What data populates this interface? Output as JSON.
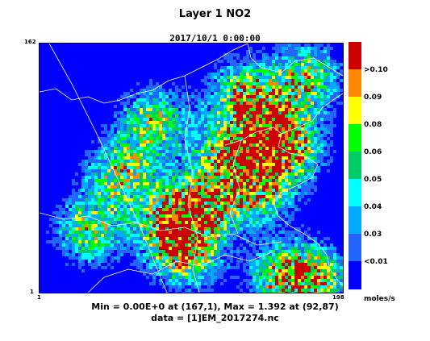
{
  "title": "Layer 1 NO2",
  "datetime": "2017/10/1 0:00:00",
  "axes": {
    "x_min_label": "1",
    "x_max_label": "198",
    "y_min_label": "1",
    "y_max_label": "162"
  },
  "legend": {
    "colors": [
      "#0000ff",
      "#2266ff",
      "#00aaff",
      "#00ffff",
      "#00cc66",
      "#00ff00",
      "#ffff00",
      "#ff8800",
      "#cc0000"
    ],
    "labels": [
      "<0.01",
      "0.03",
      "0.04",
      "0.05",
      "0.06",
      "0.08",
      "0.09",
      ">0.10"
    ],
    "unit": "moles/s"
  },
  "stats": {
    "minmax": "Min = 0.00E+0 at (167,1), Max = 1.392 at (92,87)",
    "source": "data = [1]EM_2017274.nc"
  },
  "map_colors": {
    "background": "#0000ff",
    "boundary": "#ffffff"
  }
}
